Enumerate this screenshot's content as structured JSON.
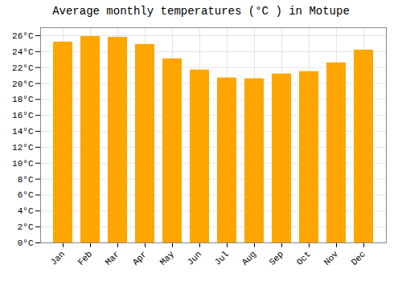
{
  "chart_data": {
    "type": "bar",
    "title": "Average monthly temperatures (°C ) in Motupe",
    "categories": [
      "Jan",
      "Feb",
      "Mar",
      "Apr",
      "May",
      "Jun",
      "Jul",
      "Aug",
      "Sep",
      "Oct",
      "Nov",
      "Dec"
    ],
    "values": [
      25.2,
      25.9,
      25.8,
      24.9,
      23.1,
      21.7,
      20.7,
      20.6,
      21.2,
      21.5,
      22.6,
      24.2
    ],
    "color": "#FFA500",
    "ylim": [
      0,
      27
    ],
    "yticks": [
      {
        "value": 0,
        "label": "0°C"
      },
      {
        "value": 2,
        "label": "2°C"
      },
      {
        "value": 4,
        "label": "4°C"
      },
      {
        "value": 6,
        "label": "6°C"
      },
      {
        "value": 8,
        "label": "8°C"
      },
      {
        "value": 10,
        "label": "10°C"
      },
      {
        "value": 12,
        "label": "12°C"
      },
      {
        "value": 14,
        "label": "14°C"
      },
      {
        "value": 16,
        "label": "16°C"
      },
      {
        "value": 18,
        "label": "18°C"
      },
      {
        "value": 20,
        "label": "20°C"
      },
      {
        "value": 22,
        "label": "22°C"
      },
      {
        "value": 24,
        "label": "24°C"
      },
      {
        "value": 26,
        "label": "26°C"
      }
    ],
    "grid": true
  }
}
